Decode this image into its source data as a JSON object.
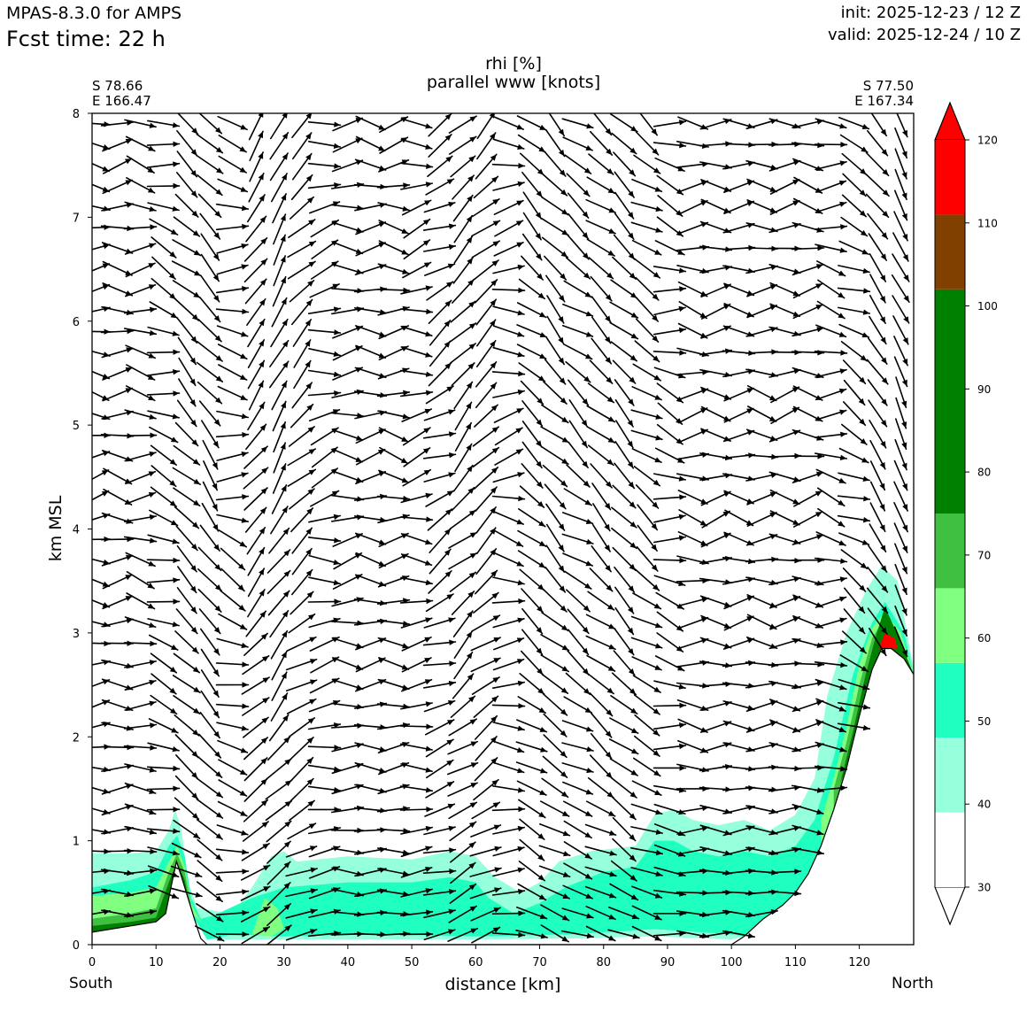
{
  "header": {
    "model": "MPAS-8.3.0 for AMPS",
    "fcst_time": "Fcst time:   22 h",
    "init": "init: 2025-12-23 / 12 Z",
    "valid": "valid: 2025-12-24 / 10 Z"
  },
  "endpoints": {
    "left_lat": "S 78.66",
    "left_lon": "E 166.47",
    "right_lat": "S 77.50",
    "right_lon": "E 167.34",
    "south_label": "South",
    "north_label": "North"
  },
  "chart_data": {
    "type": "heatmap",
    "title": "rhi [%]",
    "subtitle": "parallel www [knots]",
    "xlabel": "distance [km]",
    "ylabel": "km MSL",
    "xlim": [
      0,
      128.5
    ],
    "ylim": [
      0,
      8
    ],
    "x_ticks": [
      0,
      10,
      20,
      30,
      40,
      50,
      60,
      70,
      80,
      90,
      100,
      110,
      120
    ],
    "y_ticks": [
      0,
      1,
      2,
      3,
      4,
      5,
      6,
      7,
      8
    ],
    "colorbar": {
      "ticks": [
        30,
        40,
        50,
        60,
        70,
        80,
        90,
        100,
        110,
        120
      ],
      "levels": [
        {
          "from": 30,
          "to": 39,
          "color": "#ffffff"
        },
        {
          "from": 39,
          "to": 48,
          "color": "#96ffdc"
        },
        {
          "from": 48,
          "to": 57,
          "color": "#1effc0"
        },
        {
          "from": 57,
          "to": 66,
          "color": "#80ff80"
        },
        {
          "from": 66,
          "to": 75,
          "color": "#40c040"
        },
        {
          "from": 75,
          "to": 102,
          "color": "#008000"
        },
        {
          "from": 102,
          "to": 111,
          "color": "#804000"
        },
        {
          "from": 111,
          "to": 120,
          "color": "#ff0000"
        }
      ],
      "extend": "both",
      "under_color": "#ffffff",
      "over_color": "#ff0000"
    },
    "terrain": [
      [
        0,
        0.12
      ],
      [
        5,
        0.17
      ],
      [
        10,
        0.22
      ],
      [
        11.5,
        0.3
      ],
      [
        12.5,
        0.6
      ],
      [
        13.2,
        0.8
      ],
      [
        14,
        0.65
      ],
      [
        15,
        0.45
      ],
      [
        16,
        0.25
      ],
      [
        17,
        0.06
      ],
      [
        18,
        0.0
      ],
      [
        22,
        0.0
      ],
      [
        100,
        0.0
      ],
      [
        102,
        0.08
      ],
      [
        105,
        0.25
      ],
      [
        108,
        0.38
      ],
      [
        110,
        0.5
      ],
      [
        112,
        0.68
      ],
      [
        114,
        0.95
      ],
      [
        116,
        1.3
      ],
      [
        118,
        1.7
      ],
      [
        120,
        2.2
      ],
      [
        122,
        2.65
      ],
      [
        123.5,
        2.85
      ],
      [
        125,
        2.85
      ],
      [
        127,
        2.75
      ],
      [
        128.5,
        2.6
      ]
    ],
    "rh_regions": [
      {
        "level": 39,
        "color": "#96ffdc",
        "outline": [
          [
            0,
            0.7
          ],
          [
            0,
            0.88
          ],
          [
            6,
            0.88
          ],
          [
            10,
            0.9
          ],
          [
            12,
            1.1
          ],
          [
            13,
            1.3
          ],
          [
            14,
            1.1
          ],
          [
            15,
            0.6
          ],
          [
            16.5,
            0.35
          ],
          [
            22,
            0.3
          ],
          [
            25,
            0.55
          ],
          [
            28,
            0.85
          ],
          [
            30,
            0.9
          ],
          [
            32,
            0.8
          ],
          [
            40,
            0.85
          ],
          [
            50,
            0.82
          ],
          [
            56,
            0.9
          ],
          [
            60,
            0.85
          ],
          [
            63,
            0.65
          ],
          [
            67,
            0.5
          ],
          [
            70,
            0.6
          ],
          [
            73,
            0.8
          ],
          [
            78,
            0.9
          ],
          [
            85,
            0.95
          ],
          [
            88,
            1.25
          ],
          [
            91,
            1.3
          ],
          [
            94,
            1.2
          ],
          [
            98,
            1.15
          ],
          [
            102,
            1.2
          ],
          [
            106,
            1.1
          ],
          [
            110,
            1.25
          ],
          [
            113,
            1.6
          ],
          [
            115,
            2.4
          ],
          [
            118,
            3.0
          ],
          [
            121,
            3.4
          ],
          [
            123.5,
            3.65
          ],
          [
            126,
            3.5
          ],
          [
            128.5,
            2.65
          ],
          [
            127,
            2.75
          ],
          [
            125,
            2.85
          ],
          [
            123.5,
            2.85
          ],
          [
            122,
            2.65
          ],
          [
            120,
            2.2
          ],
          [
            118,
            1.7
          ],
          [
            116,
            1.3
          ],
          [
            114,
            0.95
          ],
          [
            112,
            0.68
          ],
          [
            110,
            0.5
          ],
          [
            108,
            0.38
          ],
          [
            105,
            0.25
          ],
          [
            102,
            0.08
          ],
          [
            100,
            0.05
          ],
          [
            88,
            0.08
          ],
          [
            75,
            0.06
          ],
          [
            60,
            0.05
          ],
          [
            45,
            0.05
          ],
          [
            30,
            0.05
          ],
          [
            22,
            0.05
          ],
          [
            18,
            0.05
          ],
          [
            16,
            0.25
          ],
          [
            15,
            0.45
          ],
          [
            14,
            0.65
          ],
          [
            13.2,
            0.8
          ],
          [
            12.5,
            0.6
          ],
          [
            11.5,
            0.3
          ],
          [
            10,
            0.22
          ],
          [
            5,
            0.17
          ],
          [
            0,
            0.12
          ]
        ]
      },
      {
        "level": 48,
        "color": "#1effc0",
        "outline": [
          [
            0,
            0.55
          ],
          [
            6,
            0.62
          ],
          [
            10,
            0.7
          ],
          [
            12,
            0.95
          ],
          [
            13.3,
            1.05
          ],
          [
            14.5,
            0.85
          ],
          [
            15.5,
            0.45
          ],
          [
            17,
            0.25
          ],
          [
            19,
            0.28
          ],
          [
            25,
            0.45
          ],
          [
            30,
            0.55
          ],
          [
            40,
            0.6
          ],
          [
            50,
            0.6
          ],
          [
            56,
            0.65
          ],
          [
            60,
            0.6
          ],
          [
            62,
            0.45
          ],
          [
            66,
            0.3
          ],
          [
            70,
            0.4
          ],
          [
            74,
            0.55
          ],
          [
            80,
            0.7
          ],
          [
            85,
            0.75
          ],
          [
            88,
            1.0
          ],
          [
            91,
            1.0
          ],
          [
            94,
            0.9
          ],
          [
            98,
            0.85
          ],
          [
            102,
            0.9
          ],
          [
            106,
            0.85
          ],
          [
            110,
            0.95
          ],
          [
            113,
            1.2
          ],
          [
            116,
            1.8
          ],
          [
            119,
            2.6
          ],
          [
            122,
            3.1
          ],
          [
            124,
            3.3
          ],
          [
            127,
            3.0
          ],
          [
            128.5,
            2.6
          ],
          [
            127,
            2.75
          ],
          [
            125,
            2.85
          ],
          [
            123.5,
            2.85
          ],
          [
            122,
            2.65
          ],
          [
            120,
            2.2
          ],
          [
            118,
            1.7
          ],
          [
            116,
            1.3
          ],
          [
            114,
            0.95
          ],
          [
            112,
            0.68
          ],
          [
            110,
            0.5
          ],
          [
            108,
            0.38
          ],
          [
            105,
            0.25
          ],
          [
            102,
            0.08
          ],
          [
            100,
            0.1
          ],
          [
            88,
            0.15
          ],
          [
            75,
            0.1
          ],
          [
            60,
            0.08
          ],
          [
            45,
            0.1
          ],
          [
            30,
            0.08
          ],
          [
            22,
            0.1
          ],
          [
            18,
            0.05
          ],
          [
            16,
            0.25
          ],
          [
            15,
            0.45
          ],
          [
            14,
            0.65
          ],
          [
            13.2,
            0.8
          ],
          [
            12.5,
            0.6
          ],
          [
            11.5,
            0.3
          ],
          [
            10,
            0.22
          ],
          [
            5,
            0.17
          ],
          [
            0,
            0.12
          ]
        ]
      },
      {
        "level": 57,
        "color": "#80ff80",
        "outline": [
          [
            0,
            0.47
          ],
          [
            6,
            0.5
          ],
          [
            10,
            0.55
          ],
          [
            12,
            0.8
          ],
          [
            13.3,
            0.95
          ],
          [
            14.5,
            0.75
          ],
          [
            15.5,
            0.4
          ],
          [
            17,
            0.22
          ],
          [
            14,
            0.4
          ],
          [
            12.5,
            0.6
          ],
          [
            11.5,
            0.3
          ],
          [
            10,
            0.22
          ],
          [
            5,
            0.17
          ],
          [
            0,
            0.12
          ]
        ]
      },
      {
        "level": 57,
        "color": "#80ff80",
        "outline": [
          [
            25,
            0.1
          ],
          [
            27,
            0.45
          ],
          [
            29,
            0.35
          ],
          [
            30,
            0.15
          ],
          [
            28,
            0.08
          ]
        ]
      },
      {
        "level": 57,
        "color": "#80ff80",
        "outline": [
          [
            114,
            1.2
          ],
          [
            116,
            1.6
          ],
          [
            118,
            2.1
          ],
          [
            120,
            2.7
          ],
          [
            122,
            3.05
          ],
          [
            124,
            3.2
          ],
          [
            126.5,
            3.0
          ],
          [
            128.5,
            2.6
          ],
          [
            127,
            2.75
          ],
          [
            125,
            2.85
          ],
          [
            123.5,
            2.85
          ],
          [
            122,
            2.65
          ],
          [
            120,
            2.2
          ],
          [
            118,
            1.7
          ],
          [
            116,
            1.3
          ],
          [
            114,
            0.95
          ]
        ]
      },
      {
        "level": 66,
        "color": "#40c040",
        "outline": [
          [
            0,
            0.25
          ],
          [
            6,
            0.3
          ],
          [
            10,
            0.35
          ],
          [
            12,
            0.7
          ],
          [
            13.3,
            0.88
          ],
          [
            14.5,
            0.7
          ],
          [
            15.5,
            0.38
          ],
          [
            14,
            0.55
          ],
          [
            12.5,
            0.6
          ],
          [
            11.5,
            0.3
          ],
          [
            10,
            0.22
          ],
          [
            5,
            0.17
          ],
          [
            0,
            0.12
          ]
        ]
      },
      {
        "level": 66,
        "color": "#40c040",
        "outline": [
          [
            116,
            1.5
          ],
          [
            118,
            1.95
          ],
          [
            120,
            2.5
          ],
          [
            122,
            2.95
          ],
          [
            124,
            3.15
          ],
          [
            126,
            2.95
          ],
          [
            128.5,
            2.6
          ],
          [
            127,
            2.75
          ],
          [
            125,
            2.85
          ],
          [
            123.5,
            2.85
          ],
          [
            122,
            2.65
          ],
          [
            120,
            2.2
          ],
          [
            118,
            1.7
          ],
          [
            116,
            1.3
          ]
        ]
      },
      {
        "level": 75,
        "color": "#008000",
        "outline": [
          [
            0,
            0.18
          ],
          [
            6,
            0.22
          ],
          [
            10,
            0.26
          ],
          [
            12,
            0.6
          ],
          [
            13.3,
            0.8
          ],
          [
            14.5,
            0.62
          ],
          [
            15.2,
            0.4
          ],
          [
            14,
            0.62
          ],
          [
            12.5,
            0.6
          ],
          [
            11.5,
            0.3
          ],
          [
            10,
            0.22
          ],
          [
            5,
            0.17
          ],
          [
            0,
            0.12
          ]
        ]
      },
      {
        "level": 75,
        "color": "#008000",
        "outline": [
          [
            117,
            1.55
          ],
          [
            119,
            2.05
          ],
          [
            121,
            2.6
          ],
          [
            122.5,
            2.95
          ],
          [
            124,
            3.25
          ],
          [
            125.5,
            3.05
          ],
          [
            128.5,
            2.6
          ],
          [
            127,
            2.75
          ],
          [
            125,
            2.85
          ],
          [
            123.5,
            2.85
          ],
          [
            122,
            2.65
          ],
          [
            120,
            2.2
          ],
          [
            118,
            1.7
          ]
        ]
      },
      {
        "level": 111,
        "color": "#ff0000",
        "outline": [
          [
            123,
            2.85
          ],
          [
            124,
            3.0
          ],
          [
            125.5,
            2.95
          ],
          [
            126,
            2.85
          ],
          [
            125,
            2.85
          ],
          [
            123.5,
            2.85
          ]
        ]
      }
    ],
    "wind_vectors": {
      "x_spacing_km": 3.6,
      "y_spacing_km": 0.2,
      "units": "knots"
    }
  }
}
